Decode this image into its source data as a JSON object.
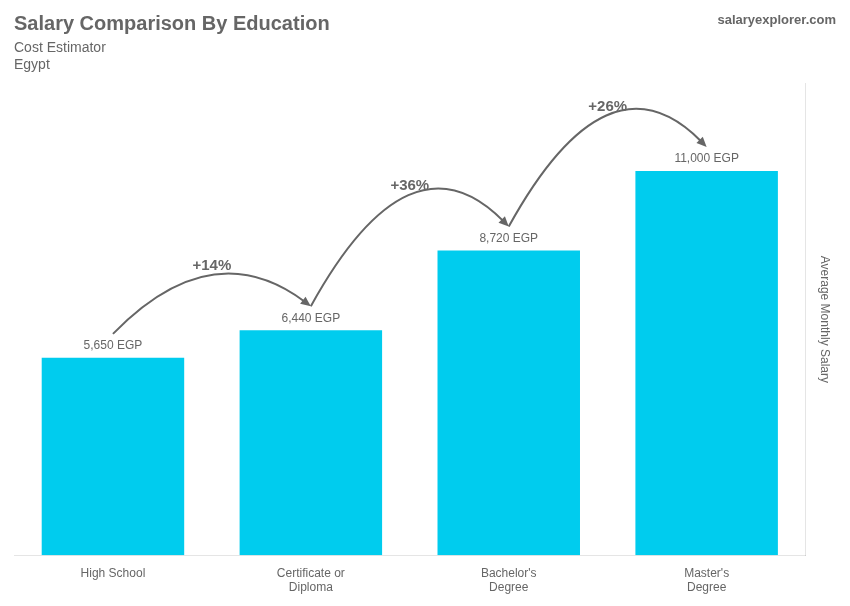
{
  "chart_data": {
    "type": "bar",
    "title": "Salary Comparison By Education",
    "subtitle": "Cost Estimator",
    "country": "Egypt",
    "source": "salaryexplorer.com",
    "ylabel": "Average Monthly Salary",
    "categories": [
      "High School",
      "Certificate or\nDiploma",
      "Bachelor's\nDegree",
      "Master's\nDegree"
    ],
    "values": [
      5650,
      6440,
      8720,
      11000
    ],
    "value_labels": [
      "5,650 EGP",
      "6,440 EGP",
      "8,720 EGP",
      "11,000 EGP"
    ],
    "color": "#00ccee",
    "ylim": [
      0,
      13500
    ],
    "grid": false,
    "tick_labels": "x",
    "data_labels": true,
    "annotations": [
      {
        "from": 0,
        "to": 1,
        "label": "+14%"
      },
      {
        "from": 1,
        "to": 2,
        "label": "+36%"
      },
      {
        "from": 2,
        "to": 3,
        "label": "+26%"
      }
    ]
  }
}
